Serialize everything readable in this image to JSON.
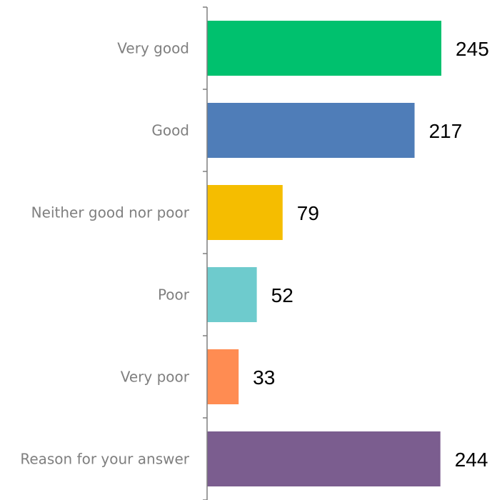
{
  "chart_data": {
    "type": "bar",
    "orientation": "horizontal",
    "categories": [
      "Very good",
      "Good",
      "Neither good nor poor",
      "Poor",
      "Very poor",
      "Reason for your answer"
    ],
    "values": [
      245,
      217,
      79,
      52,
      33,
      244
    ],
    "colors": [
      "#00c16e",
      "#4f7db8",
      "#f5bd00",
      "#6ecbcd",
      "#ff8c52",
      "#7b5d8f"
    ],
    "xlim": [
      0,
      300
    ],
    "grid": false,
    "legend": "none",
    "title": "",
    "xlabel": "",
    "ylabel": ""
  }
}
